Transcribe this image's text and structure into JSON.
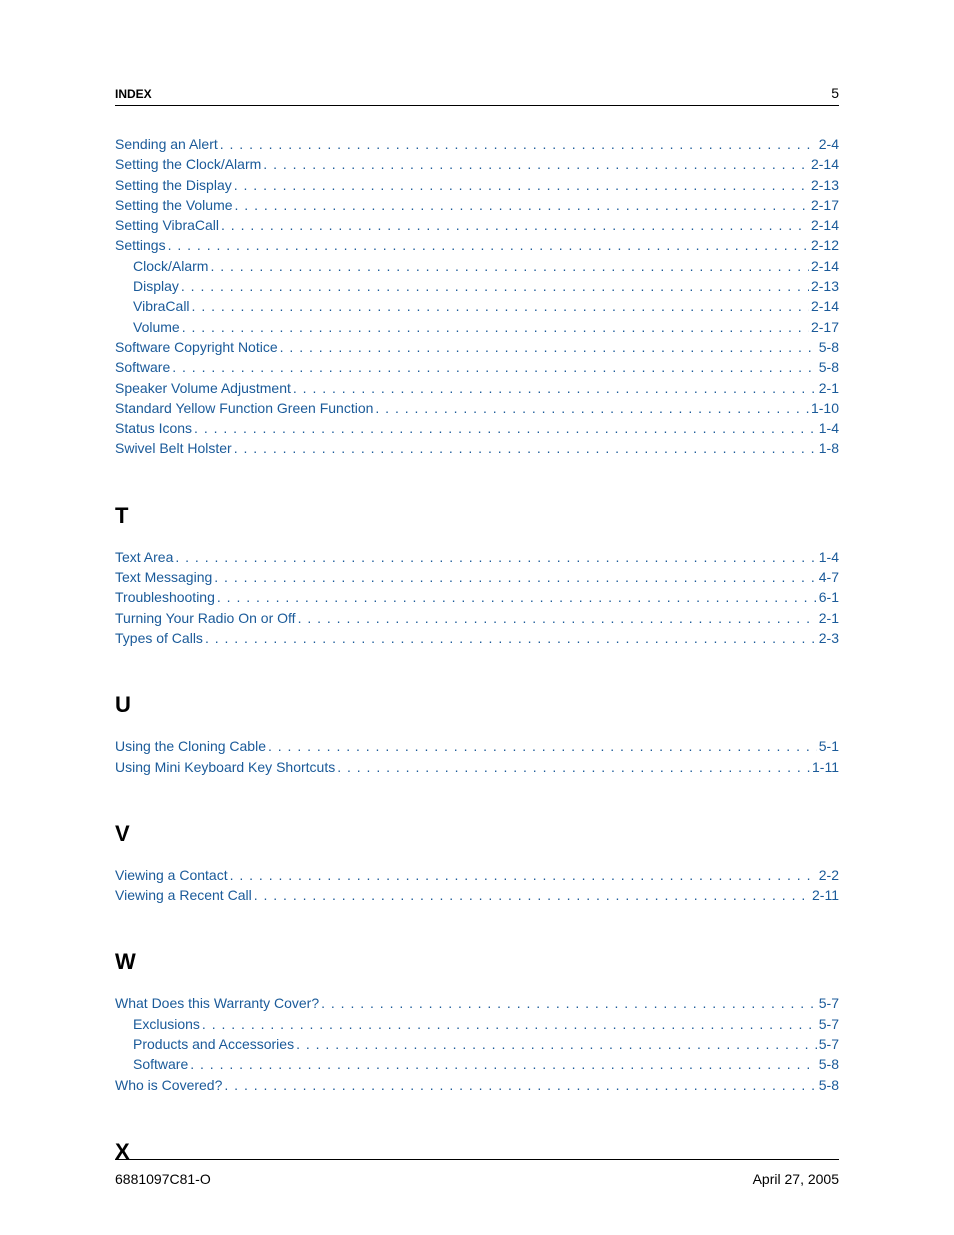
{
  "header": {
    "label": "INDEX",
    "page_number": "5"
  },
  "colors": {
    "link_color": "#1a5a99",
    "text_color": "#000000",
    "rule_color": "#000000",
    "background": "#ffffff"
  },
  "typography": {
    "body_font": "Arial, Helvetica, sans-serif",
    "body_fontsize_pt": 10,
    "section_letter_fontsize_pt": 16,
    "header_fontsize_pt": 9
  },
  "continued_entries": [
    {
      "label": "Sending an Alert",
      "page": "2-4",
      "indent": 0
    },
    {
      "label": "Setting the Clock/Alarm",
      "page": "2-14",
      "indent": 0
    },
    {
      "label": "Setting the Display",
      "page": "2-13",
      "indent": 0
    },
    {
      "label": "Setting the Volume",
      "page": "2-17",
      "indent": 0
    },
    {
      "label": "Setting VibraCall",
      "page": "2-14",
      "indent": 0
    },
    {
      "label": "Settings",
      "page": "2-12",
      "indent": 0
    },
    {
      "label": "Clock/Alarm",
      "page": "2-14",
      "indent": 1
    },
    {
      "label": "Display",
      "page": "2-13",
      "indent": 1
    },
    {
      "label": "VibraCall",
      "page": "2-14",
      "indent": 1
    },
    {
      "label": "Volume",
      "page": "2-17",
      "indent": 1
    },
    {
      "label": "Software Copyright Notice",
      "page": "5-8",
      "indent": 0
    },
    {
      "label": "Software",
      "page": "5-8",
      "indent": 0
    },
    {
      "label": "Speaker Volume Adjustment",
      "page": "2-1",
      "indent": 0
    },
    {
      "label": "Standard Yellow Function Green Function",
      "page": "1-10",
      "indent": 0
    },
    {
      "label": "Status Icons",
      "page": "1-4",
      "indent": 0
    },
    {
      "label": "Swivel Belt Holster",
      "page": "1-8",
      "indent": 0
    }
  ],
  "sections": [
    {
      "letter": "T",
      "entries": [
        {
          "label": "Text Area",
          "page": "1-4",
          "indent": 0
        },
        {
          "label": "Text Messaging",
          "page": "4-7",
          "indent": 0
        },
        {
          "label": "Troubleshooting",
          "page": "6-1",
          "indent": 0
        },
        {
          "label": "Turning Your Radio On or Off",
          "page": "2-1",
          "indent": 0
        },
        {
          "label": "Types of Calls",
          "page": "2-3",
          "indent": 0
        }
      ]
    },
    {
      "letter": "U",
      "entries": [
        {
          "label": "Using the Cloning Cable",
          "page": "5-1",
          "indent": 0
        },
        {
          "label": "Using Mini Keyboard Key Shortcuts",
          "page": "1-11",
          "indent": 0
        }
      ]
    },
    {
      "letter": "V",
      "entries": [
        {
          "label": "Viewing a Contact",
          "page": "2-2",
          "indent": 0
        },
        {
          "label": "Viewing a Recent Call",
          "page": "2-11",
          "indent": 0
        }
      ]
    },
    {
      "letter": "W",
      "entries": [
        {
          "label": "What Does this Warranty Cover?",
          "page": "5-7",
          "indent": 0
        },
        {
          "label": "Exclusions",
          "page": "5-7",
          "indent": 1
        },
        {
          "label": "Products and Accessories",
          "page": "5-7",
          "indent": 1
        },
        {
          "label": "Software",
          "page": "5-8",
          "indent": 1
        },
        {
          "label": "Who is Covered?",
          "page": "5-8",
          "indent": 0
        }
      ]
    },
    {
      "letter": "X",
      "entries": []
    }
  ],
  "footer": {
    "doc_id": "6881097C81-O",
    "date": "April 27, 2005"
  }
}
